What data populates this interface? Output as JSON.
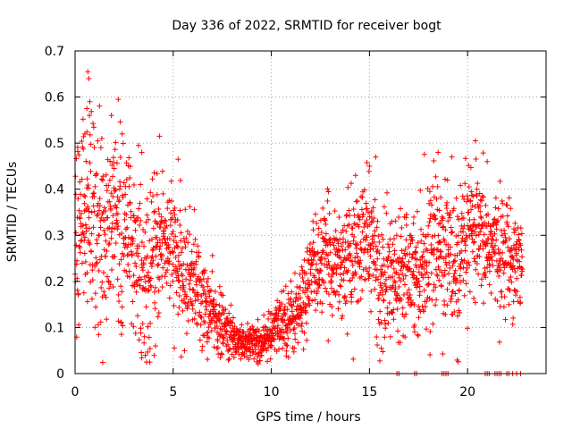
{
  "chart_data": {
    "type": "scatter",
    "title": "Day 336 of 2022, SRMTID for receiver bogt",
    "xlabel": "GPS time / hours",
    "ylabel": "SRMTID / TECUs",
    "xlim": [
      0,
      24
    ],
    "ylim": [
      0,
      0.7
    ],
    "xticks": [
      0,
      5,
      10,
      15,
      20
    ],
    "yticks": [
      0,
      0.1,
      0.2,
      0.3,
      0.4,
      0.5,
      0.6,
      0.7
    ],
    "xtick_labels": [
      "0",
      "5",
      "10",
      "15",
      "20"
    ],
    "ytick_labels": [
      "0",
      "0.1",
      "0.2",
      "0.3",
      "0.4",
      "0.5",
      "0.6",
      "0.7"
    ],
    "grid": true,
    "marker": "+",
    "color": "#ff0000",
    "series": [
      {
        "name": "SRMTID",
        "trend": {
          "x": [
            0,
            0.5,
            1,
            1.5,
            2,
            2.5,
            3,
            3.5,
            4,
            4.5,
            5,
            5.5,
            6,
            6.5,
            7,
            7.5,
            8,
            8.5,
            9,
            9.5,
            10,
            10.5,
            11,
            11.5,
            12,
            12.5,
            13,
            13.5,
            14,
            14.5,
            15,
            15.5,
            16,
            16.5,
            17,
            17.5,
            18,
            18.5,
            19,
            19.5,
            20,
            20.5,
            21,
            21.5,
            22,
            22.5,
            22.8
          ],
          "y": [
            0.31,
            0.36,
            0.34,
            0.3,
            0.35,
            0.3,
            0.27,
            0.2,
            0.24,
            0.3,
            0.26,
            0.2,
            0.22,
            0.15,
            0.13,
            0.1,
            0.08,
            0.07,
            0.07,
            0.07,
            0.08,
            0.12,
            0.12,
            0.14,
            0.22,
            0.24,
            0.25,
            0.24,
            0.26,
            0.27,
            0.3,
            0.21,
            0.2,
            0.23,
            0.25,
            0.22,
            0.26,
            0.28,
            0.27,
            0.2,
            0.31,
            0.29,
            0.28,
            0.27,
            0.26,
            0.25,
            0.25
          ]
        },
        "spread": {
          "x": [
            0,
            1,
            2,
            3,
            4,
            5,
            6,
            7,
            8,
            9,
            10,
            11,
            12,
            13,
            14,
            15,
            16,
            17,
            18,
            19,
            20,
            21,
            22,
            22.8
          ],
          "y": [
            0.09,
            0.12,
            0.11,
            0.08,
            0.08,
            0.07,
            0.06,
            0.04,
            0.025,
            0.02,
            0.025,
            0.04,
            0.05,
            0.06,
            0.06,
            0.07,
            0.07,
            0.06,
            0.07,
            0.08,
            0.07,
            0.06,
            0.06,
            0.05
          ]
        },
        "points_per_hour": 100,
        "x_range": [
          0,
          22.8
        ],
        "peaks": [
          {
            "x": 0.65,
            "y": 0.655
          },
          {
            "x": 0.7,
            "y": 0.64
          },
          {
            "x": 0.75,
            "y": 0.59
          },
          {
            "x": 0.6,
            "y": 0.575
          },
          {
            "x": 0.5,
            "y": 0.52
          },
          {
            "x": 2.2,
            "y": 0.595
          },
          {
            "x": 1.85,
            "y": 0.56
          },
          {
            "x": 2.4,
            "y": 0.52
          },
          {
            "x": 4.3,
            "y": 0.515
          },
          {
            "x": 5.25,
            "y": 0.465
          },
          {
            "x": 3.4,
            "y": 0.48
          },
          {
            "x": 15.0,
            "y": 0.45
          },
          {
            "x": 18.5,
            "y": 0.48
          },
          {
            "x": 20.4,
            "y": 0.505
          },
          {
            "x": 19.2,
            "y": 0.47
          },
          {
            "x": 21.0,
            "y": 0.46
          },
          {
            "x": 4.1,
            "y": 0.06
          },
          {
            "x": 15.6,
            "y": 0.055
          },
          {
            "x": 17.3,
            "y": 0.105
          }
        ],
        "zero_points_x": [
          16.4,
          16.5,
          17.3,
          17.4,
          18.7,
          18.8,
          18.9,
          19.0,
          20.9,
          21.0,
          21.1,
          21.4,
          21.5,
          21.6,
          21.7,
          22.0,
          22.1,
          22.3,
          22.5,
          22.7
        ]
      }
    ]
  }
}
